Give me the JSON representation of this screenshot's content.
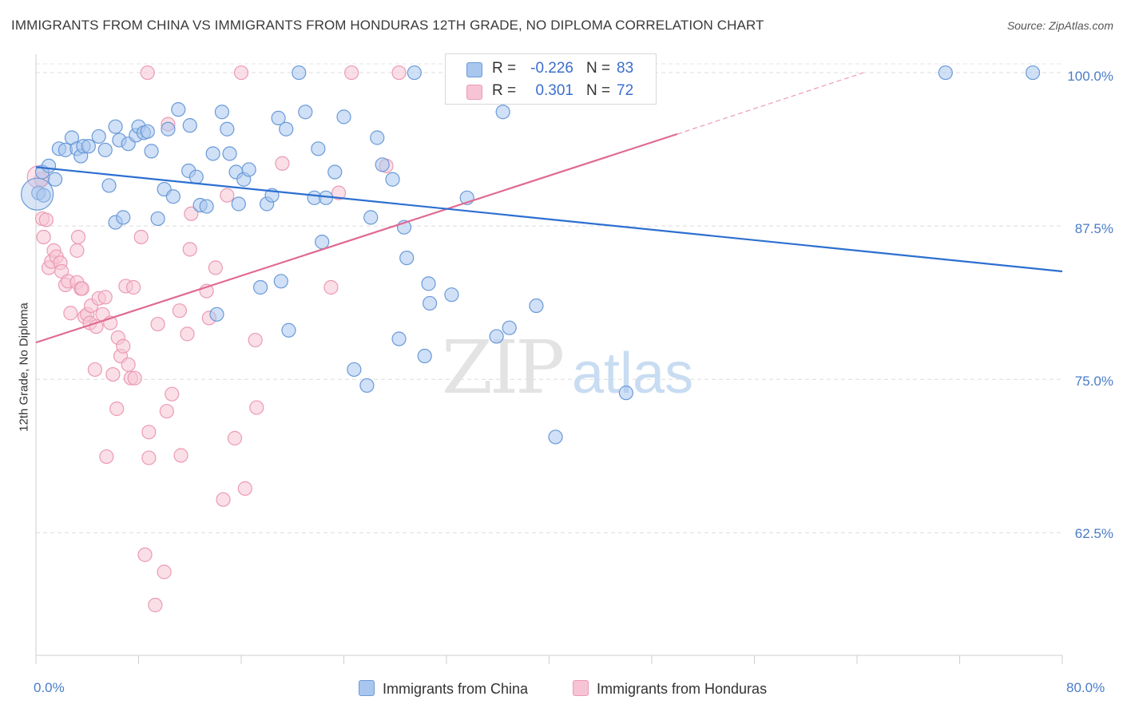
{
  "title": "IMMIGRANTS FROM CHINA VS IMMIGRANTS FROM HONDURAS 12TH GRADE, NO DIPLOMA CORRELATION CHART",
  "source": "Source: ZipAtlas.com",
  "watermark": {
    "zip": "ZIP",
    "atlas": "atlas"
  },
  "legend": {
    "r_label": "R =",
    "n_label": "N =",
    "china": {
      "r": "-0.226",
      "n": "83"
    },
    "honduras": {
      "r": "0.301",
      "n": "72"
    }
  },
  "colors": {
    "china_fill": "#a9c6ee",
    "china_stroke": "#6a9ad8",
    "china_line": "#2c6fd0",
    "honduras_fill": "#f6c4d4",
    "honduras_stroke": "#ec9ab5",
    "honduras_line": "#e06a92",
    "tick_text": "#4a7cc9"
  },
  "chart_data": {
    "type": "scatter",
    "title": "IMMIGRANTS FROM CHINA VS IMMIGRANTS FROM HONDURAS 12TH GRADE, NO DIPLOMA CORRELATION CHART",
    "xlabel": "",
    "ylabel": "12th Grade, No Diploma",
    "xlim": [
      0,
      80
    ],
    "ylim": [
      52.5,
      101.5
    ],
    "x_tick_labels": [
      "0.0%",
      "80.0%"
    ],
    "y_ticks": [
      62.5,
      75.0,
      87.5,
      100.0
    ],
    "y_tick_labels": [
      "62.5%",
      "75.0%",
      "87.5%",
      "100.0%"
    ],
    "grid": true,
    "legend_position": "top-center",
    "series": [
      {
        "name": "Immigrants from China",
        "r": -0.226,
        "n": 83,
        "trend": {
          "x": [
            0,
            80
          ],
          "y": [
            92.3,
            83.8
          ]
        },
        "points": [
          [
            0.2,
            90.2
          ],
          [
            0.5,
            91.9
          ],
          [
            1.0,
            92.4
          ],
          [
            1.5,
            91.3
          ],
          [
            1.8,
            93.8
          ],
          [
            2.3,
            93.7
          ],
          [
            2.8,
            94.7
          ],
          [
            3.2,
            93.8
          ],
          [
            3.5,
            93.2
          ],
          [
            3.7,
            94.0
          ],
          [
            4.1,
            94.0
          ],
          [
            4.9,
            94.8
          ],
          [
            5.4,
            93.7
          ],
          [
            5.7,
            90.8
          ],
          [
            6.2,
            87.8
          ],
          [
            6.2,
            95.6
          ],
          [
            6.5,
            94.5
          ],
          [
            6.8,
            88.2
          ],
          [
            7.2,
            94.2
          ],
          [
            7.8,
            94.9
          ],
          [
            8.0,
            95.6
          ],
          [
            8.4,
            95.1
          ],
          [
            8.7,
            95.2
          ],
          [
            9.0,
            93.6
          ],
          [
            9.5,
            88.1
          ],
          [
            10.0,
            90.5
          ],
          [
            10.3,
            95.4
          ],
          [
            10.7,
            89.9
          ],
          [
            11.1,
            97.0
          ],
          [
            11.9,
            92.0
          ],
          [
            12.0,
            95.7
          ],
          [
            12.5,
            91.5
          ],
          [
            12.8,
            89.2
          ],
          [
            13.3,
            89.1
          ],
          [
            13.8,
            93.4
          ],
          [
            14.1,
            80.3
          ],
          [
            14.5,
            96.8
          ],
          [
            14.9,
            95.4
          ],
          [
            15.1,
            93.4
          ],
          [
            15.6,
            91.9
          ],
          [
            15.8,
            89.3
          ],
          [
            16.2,
            91.3
          ],
          [
            16.6,
            92.1
          ],
          [
            17.5,
            82.5
          ],
          [
            18.0,
            89.3
          ],
          [
            18.4,
            90.0
          ],
          [
            18.9,
            96.3
          ],
          [
            19.1,
            83.0
          ],
          [
            19.5,
            95.4
          ],
          [
            19.7,
            79.0
          ],
          [
            20.5,
            100.0
          ],
          [
            21.0,
            96.8
          ],
          [
            21.7,
            89.8
          ],
          [
            22.0,
            93.8
          ],
          [
            22.3,
            86.2
          ],
          [
            22.6,
            89.8
          ],
          [
            23.3,
            91.9
          ],
          [
            24.0,
            96.4
          ],
          [
            24.8,
            75.8
          ],
          [
            25.8,
            74.5
          ],
          [
            26.1,
            88.2
          ],
          [
            26.6,
            94.7
          ],
          [
            27.0,
            92.5
          ],
          [
            27.8,
            91.3
          ],
          [
            28.3,
            78.3
          ],
          [
            28.7,
            87.4
          ],
          [
            28.9,
            84.9
          ],
          [
            29.5,
            100.0
          ],
          [
            30.3,
            76.9
          ],
          [
            30.6,
            82.8
          ],
          [
            30.7,
            81.2
          ],
          [
            32.4,
            81.9
          ],
          [
            33.0,
            100.0
          ],
          [
            33.6,
            89.8
          ],
          [
            35.9,
            78.5
          ],
          [
            36.4,
            96.8
          ],
          [
            36.9,
            79.2
          ],
          [
            39.0,
            81.0
          ],
          [
            40.5,
            70.3
          ],
          [
            46.0,
            73.9
          ],
          [
            70.9,
            100.0
          ],
          [
            77.7,
            100.0
          ],
          [
            0.6,
            90.0
          ]
        ]
      },
      {
        "name": "Immigrants from Honduras",
        "r": 0.301,
        "n": 72,
        "trend": {
          "x": [
            0,
            50
          ],
          "y": [
            78.0,
            95.0
          ]
        },
        "trend_dashed": {
          "x": [
            50,
            64.5
          ],
          "y": [
            95.0,
            100.0
          ]
        },
        "points": [
          [
            0.4,
            91.3
          ],
          [
            0.5,
            88.1
          ],
          [
            0.6,
            86.6
          ],
          [
            0.8,
            88.0
          ],
          [
            1.0,
            84.1
          ],
          [
            1.2,
            84.6
          ],
          [
            1.4,
            85.5
          ],
          [
            1.6,
            85.0
          ],
          [
            1.9,
            84.5
          ],
          [
            2.0,
            83.8
          ],
          [
            2.3,
            82.7
          ],
          [
            2.5,
            83.0
          ],
          [
            2.7,
            80.4
          ],
          [
            3.2,
            82.9
          ],
          [
            3.2,
            85.5
          ],
          [
            3.3,
            86.6
          ],
          [
            3.5,
            82.4
          ],
          [
            3.6,
            82.4
          ],
          [
            3.8,
            80.1
          ],
          [
            4.0,
            80.3
          ],
          [
            4.2,
            79.6
          ],
          [
            4.3,
            81.0
          ],
          [
            4.6,
            75.8
          ],
          [
            4.7,
            79.3
          ],
          [
            4.9,
            81.6
          ],
          [
            5.2,
            80.3
          ],
          [
            5.4,
            81.7
          ],
          [
            5.5,
            68.7
          ],
          [
            5.8,
            79.6
          ],
          [
            6.0,
            75.4
          ],
          [
            6.3,
            72.6
          ],
          [
            6.4,
            78.4
          ],
          [
            6.6,
            76.9
          ],
          [
            6.8,
            77.7
          ],
          [
            7.0,
            82.6
          ],
          [
            7.2,
            76.2
          ],
          [
            7.4,
            75.1
          ],
          [
            7.6,
            82.5
          ],
          [
            7.7,
            75.1
          ],
          [
            8.2,
            86.6
          ],
          [
            8.5,
            60.7
          ],
          [
            8.8,
            70.7
          ],
          [
            8.8,
            68.6
          ],
          [
            9.3,
            56.6
          ],
          [
            9.5,
            79.5
          ],
          [
            10.0,
            59.3
          ],
          [
            10.2,
            72.4
          ],
          [
            10.3,
            95.8
          ],
          [
            10.6,
            73.8
          ],
          [
            11.2,
            80.6
          ],
          [
            11.3,
            68.8
          ],
          [
            11.8,
            78.7
          ],
          [
            12.0,
            85.6
          ],
          [
            12.1,
            88.5
          ],
          [
            13.3,
            82.2
          ],
          [
            13.5,
            80.0
          ],
          [
            14.0,
            84.1
          ],
          [
            14.6,
            65.2
          ],
          [
            14.9,
            90.0
          ],
          [
            15.5,
            70.2
          ],
          [
            16.0,
            100.0
          ],
          [
            16.3,
            66.1
          ],
          [
            17.1,
            78.2
          ],
          [
            17.2,
            72.7
          ],
          [
            19.2,
            92.6
          ],
          [
            23.0,
            82.5
          ],
          [
            23.6,
            90.2
          ],
          [
            24.6,
            100.0
          ],
          [
            27.3,
            92.4
          ],
          [
            28.3,
            100.0
          ],
          [
            32.6,
            100.0
          ],
          [
            8.7,
            100.0
          ]
        ]
      }
    ]
  },
  "bottom_legend": {
    "china": "Immigrants from China",
    "honduras": "Immigrants from Honduras"
  }
}
